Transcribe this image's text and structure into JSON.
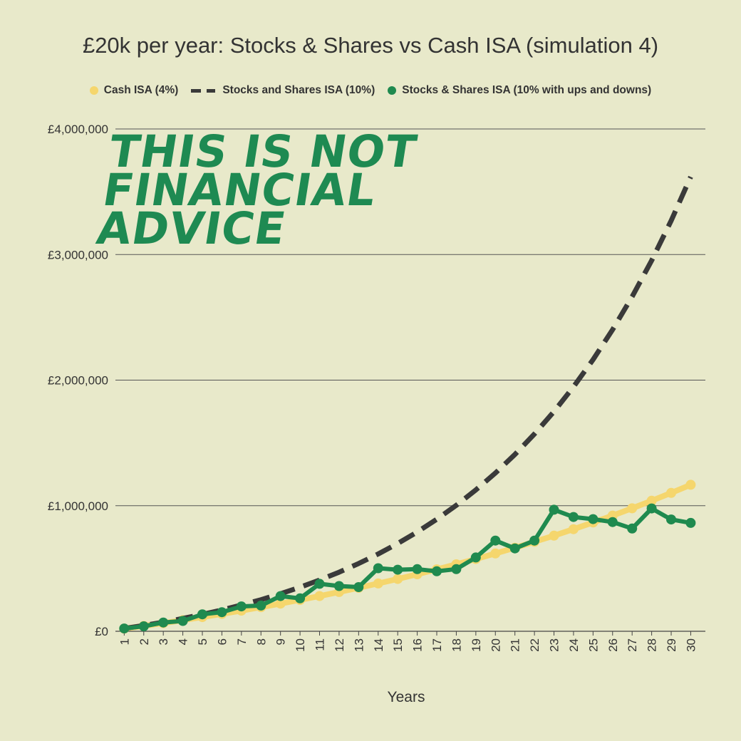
{
  "chart_data": {
    "type": "line",
    "title": "£20k per year: Stocks & Shares vs Cash ISA (simulation 4)",
    "xlabel": "Years",
    "ylabel": "",
    "ylim": [
      0,
      4000000
    ],
    "y_ticks": [
      0,
      1000000,
      2000000,
      3000000,
      4000000
    ],
    "y_tick_labels": [
      "£0",
      "£1,000,000",
      "£2,000,000",
      "£3,000,000",
      "£4,000,000"
    ],
    "x": [
      1,
      2,
      3,
      4,
      5,
      6,
      7,
      8,
      9,
      10,
      11,
      12,
      13,
      14,
      15,
      16,
      17,
      18,
      19,
      20,
      21,
      22,
      23,
      24,
      25,
      26,
      27,
      28,
      29,
      30
    ],
    "grid": true,
    "legend_position": "top",
    "annotation": "THIS IS NOT\nFINANCIAL\nADVICE",
    "series": [
      {
        "name": "Cash ISA (4%)",
        "style": "line-markers",
        "color": "#f5d66d",
        "values": [
          20800,
          42432,
          64929,
          88326,
          112660,
          137966,
          164285,
          191656,
          220122,
          249727,
          280516,
          312537,
          345838,
          380472,
          416491,
          453951,
          492909,
          533425,
          575562,
          619384,
          664959,
          712357,
          761651,
          812917,
          866234,
          921683,
          979351,
          1039325,
          1101698,
          1166566
        ]
      },
      {
        "name": "Stocks and Shares ISA (10%)",
        "style": "dashed",
        "color": "#3a3a3a",
        "values": [
          22000,
          46200,
          72820,
          102102,
          134312,
          169743,
          208718,
          251590,
          298749,
          350623,
          407686,
          470454,
          539500,
          615450,
          698995,
          790894,
          891983,
          1003182,
          1125500,
          1260050,
          1408055,
          1570860,
          1749946,
          1946941,
          2163635,
          2401999,
          2664198,
          2952618,
          3269880,
          3618868
        ]
      },
      {
        "name": "Stocks & Shares ISA (10% with ups and downs)",
        "style": "line-markers",
        "color": "#1f8a4f",
        "values": [
          22000,
          40000,
          70000,
          82000,
          135000,
          152000,
          198000,
          205000,
          280000,
          262000,
          378000,
          360000,
          352000,
          502000,
          490000,
          495000,
          478000,
          495000,
          588000,
          722000,
          660000,
          722000,
          968000,
          910000,
          893000,
          870000,
          818000,
          978000,
          890000,
          863000
        ]
      }
    ]
  }
}
